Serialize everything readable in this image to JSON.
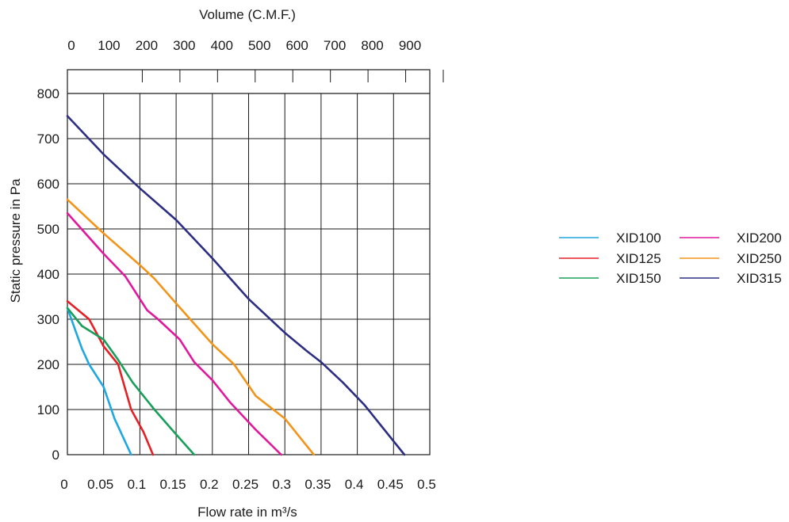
{
  "chart_data": {
    "type": "line",
    "title": "",
    "top_axis": {
      "label": "Volume (C.M.F.)",
      "ticks": [
        0,
        100,
        200,
        300,
        400,
        500,
        600,
        700,
        800,
        900
      ]
    },
    "xlabel": "Flow rate in m³/s",
    "ylabel": "Static pressure in Pa",
    "xlim": [
      0,
      0.5
    ],
    "ylim": [
      0,
      800
    ],
    "x_ticks": [
      "0",
      "0.05",
      "0.1",
      "0.15",
      "0.2",
      "0.25",
      "0.3",
      "0.35",
      "0.4",
      "0.45",
      "0.5"
    ],
    "y_ticks": [
      "0",
      "100",
      "200",
      "300",
      "400",
      "500",
      "600",
      "700",
      "800"
    ],
    "grid": true,
    "legend_position": "right",
    "series": [
      {
        "name": "XID100",
        "color": "#1ea7e1",
        "points": [
          [
            0,
            325
          ],
          [
            0.01,
            280
          ],
          [
            0.02,
            235
          ],
          [
            0.03,
            200
          ],
          [
            0.05,
            150
          ],
          [
            0.065,
            80
          ],
          [
            0.088,
            0
          ]
        ]
      },
      {
        "name": "XID125",
        "color": "#e52126",
        "points": [
          [
            0,
            340
          ],
          [
            0.03,
            300
          ],
          [
            0.05,
            240
          ],
          [
            0.07,
            200
          ],
          [
            0.088,
            100
          ],
          [
            0.105,
            50
          ],
          [
            0.118,
            0
          ]
        ]
      },
      {
        "name": "XID150",
        "color": "#1a9f5a",
        "points": [
          [
            0,
            325
          ],
          [
            0.02,
            285
          ],
          [
            0.05,
            255
          ],
          [
            0.07,
            210
          ],
          [
            0.09,
            160
          ],
          [
            0.12,
            100
          ],
          [
            0.15,
            45
          ],
          [
            0.175,
            0
          ]
        ]
      },
      {
        "name": "XID200",
        "color": "#e2189c",
        "points": [
          [
            0,
            535
          ],
          [
            0.05,
            445
          ],
          [
            0.08,
            395
          ],
          [
            0.11,
            320
          ],
          [
            0.125,
            300
          ],
          [
            0.155,
            255
          ],
          [
            0.175,
            205
          ],
          [
            0.2,
            165
          ],
          [
            0.225,
            115
          ],
          [
            0.26,
            55
          ],
          [
            0.295,
            0
          ]
        ]
      },
      {
        "name": "XID250",
        "color": "#f39419",
        "points": [
          [
            0,
            565
          ],
          [
            0.05,
            490
          ],
          [
            0.1,
            420
          ],
          [
            0.12,
            390
          ],
          [
            0.15,
            335
          ],
          [
            0.2,
            245
          ],
          [
            0.23,
            200
          ],
          [
            0.26,
            130
          ],
          [
            0.3,
            80
          ],
          [
            0.34,
            0
          ]
        ]
      },
      {
        "name": "XID315",
        "color": "#2c2e83",
        "points": [
          [
            0,
            750
          ],
          [
            0.05,
            665
          ],
          [
            0.1,
            590
          ],
          [
            0.15,
            520
          ],
          [
            0.2,
            435
          ],
          [
            0.25,
            345
          ],
          [
            0.3,
            270
          ],
          [
            0.33,
            230
          ],
          [
            0.35,
            205
          ],
          [
            0.38,
            160
          ],
          [
            0.41,
            110
          ],
          [
            0.465,
            0
          ]
        ]
      }
    ]
  }
}
